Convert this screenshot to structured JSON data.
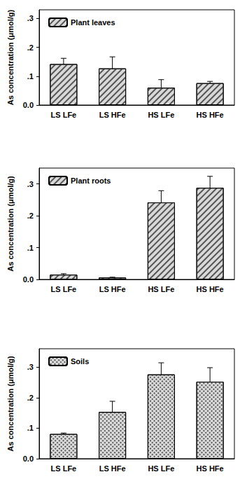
{
  "chart_data": [
    {
      "type": "bar",
      "ylabel": "As concentration (μmol/g)",
      "categories": [
        "LS LFe",
        "LS HFe",
        "HS LFe",
        "HS HFe"
      ],
      "series": [
        {
          "name": "Plant leaves",
          "color": "#d9d9d9",
          "values": [
            0.142,
            0.127,
            0.06,
            0.076
          ],
          "errors": [
            0.02,
            0.04,
            0.028,
            0.006
          ]
        }
      ],
      "ylim": [
        0,
        0.33
      ],
      "yticks": [
        {
          "value": 0,
          "label": "0.0"
        },
        {
          "value": 0.1,
          "label": ".1"
        },
        {
          "value": 0.2,
          "label": ".2"
        },
        {
          "value": 0.3,
          "label": ".3"
        }
      ],
      "legend": "upper left",
      "grid": false
    },
    {
      "type": "bar",
      "ylabel": "As concentration (μmol/g)",
      "categories": [
        "LS LFe",
        "LS HFe",
        "HS LFe",
        "HS HFe"
      ],
      "series": [
        {
          "name": "Plant roots",
          "color": "#d9d9d9",
          "values": [
            0.015,
            0.006,
            0.242,
            0.288
          ],
          "errors": [
            0.003,
            0.001,
            0.037,
            0.036
          ]
        }
      ],
      "ylim": [
        0,
        0.35
      ],
      "yticks": [
        {
          "value": 0,
          "label": "0.0"
        },
        {
          "value": 0.1,
          "label": ".1"
        },
        {
          "value": 0.2,
          "label": ".2"
        },
        {
          "value": 0.3,
          "label": ".3"
        }
      ],
      "legend": "upper left",
      "grid": false
    },
    {
      "type": "bar",
      "ylabel": "As concentration (μmol/g)",
      "categories": [
        "LS LFe",
        "LS HFe",
        "HS LFe",
        "HS HFe"
      ],
      "series": [
        {
          "name": "Soils",
          "color": "#d9d9d9",
          "values": [
            0.081,
            0.153,
            0.276,
            0.252
          ],
          "errors": [
            0.003,
            0.035,
            0.038,
            0.046
          ]
        }
      ],
      "ylim": [
        0,
        0.36
      ],
      "yticks": [
        {
          "value": 0,
          "label": "0.0"
        },
        {
          "value": 0.1,
          "label": ".1"
        },
        {
          "value": 0.2,
          "label": ".2"
        },
        {
          "value": 0.3,
          "label": ".3"
        }
      ],
      "legend": "upper left",
      "grid": false
    }
  ]
}
